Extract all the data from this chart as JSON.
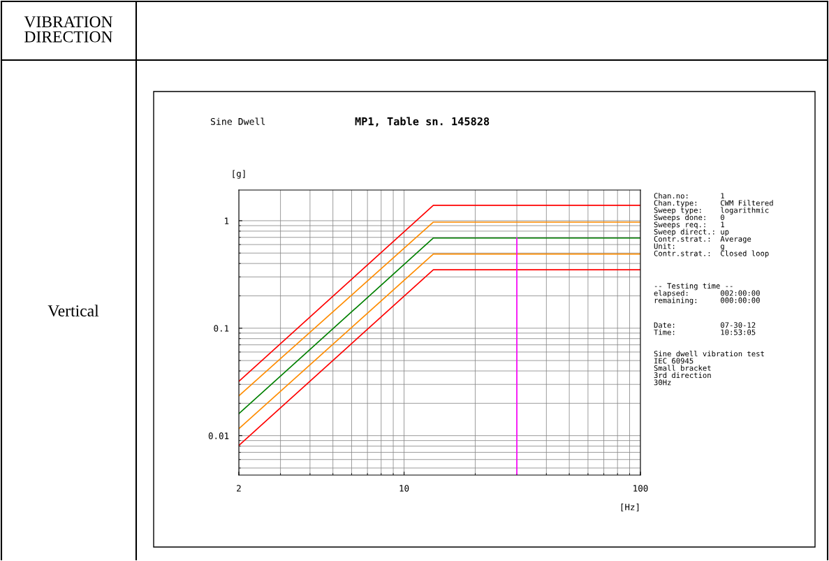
{
  "chart_data": {
    "type": "line",
    "title": "MP1, Table sn. 145828",
    "subtitle": "Sine Dwell",
    "xlabel": "[Hz]",
    "ylabel": "[g]",
    "log": "xy",
    "xlim": [
      2,
      100
    ],
    "ylim": [
      0.0043,
      1.93
    ],
    "xticks": [
      2,
      10,
      100
    ],
    "yticks": [
      0.01,
      0.1,
      1
    ],
    "grid": true,
    "marker": "none",
    "line_style": "solid",
    "series": [
      {
        "color": "#ff0000",
        "x": [
          2,
          13.3,
          100
        ],
        "values": [
          0.032,
          1.39,
          1.39
        ]
      },
      {
        "color": "#ff8c00",
        "x": [
          2,
          13.3,
          100
        ],
        "values": [
          0.0235,
          0.97,
          0.97
        ]
      },
      {
        "color": "#008000",
        "x": [
          2,
          13.3,
          100
        ],
        "values": [
          0.016,
          0.69,
          0.69
        ]
      },
      {
        "color": "#ff8c00",
        "x": [
          2,
          13.3,
          100
        ],
        "values": [
          0.0116,
          0.49,
          0.49
        ]
      },
      {
        "color": "#ff0000",
        "x": [
          2,
          13.3,
          100
        ],
        "values": [
          0.0081,
          0.35,
          0.35
        ]
      },
      {
        "color": "#ff00ff",
        "x": [
          30,
          30
        ],
        "values": [
          0.0043,
          0.69
        ]
      }
    ],
    "annotations": [
      "VIBRATION\nDIRECTION",
      "Vertical",
      "Chan.no:       1\nChan.type:     CWM Filtered\nSweep type:    logarithmic\nSweeps done:   0\nSweeps req.:   1\nSweep direct.: up\nContr.strat.:  Average\nUnit:          g\nContr.strat.:  Closed loop",
      "-- Testing time --\nelapsed:       002:00:00\nremaining:     000:00:00",
      "Date:          07-30-12\nTime:          10:53:05",
      "Sine dwell vibration test\nIEC 60945\nSmall bracket\n3rd direction\n30Hz"
    ]
  }
}
